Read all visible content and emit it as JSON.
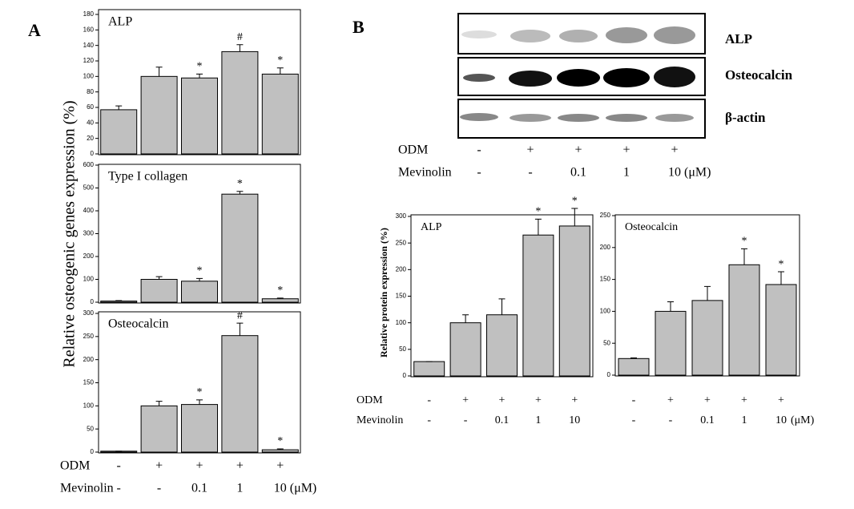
{
  "panel_a": {
    "label": "A",
    "ylabel": "Relative osteogenic genes expression (%)",
    "conditions": {
      "rows": [
        {
          "name": "ODM",
          "values": [
            "-",
            "+",
            "+",
            "+",
            "+"
          ]
        },
        {
          "name": "Mevinolin",
          "values": [
            "-",
            "-",
            "0.1",
            "1",
            "10"
          ],
          "unit": "(μM)"
        }
      ]
    }
  },
  "panel_b": {
    "label": "B",
    "ylabel": "Relative protein expression (%)",
    "blot_labels": [
      "ALP",
      "Osteocalcin",
      "β-actin"
    ],
    "blot_conditions": {
      "rows": [
        {
          "name": "ODM",
          "values": [
            "-",
            "+",
            "+",
            "+",
            "+"
          ]
        },
        {
          "name": "Mevinolin",
          "values": [
            "-",
            "-",
            "0.1",
            "1",
            "10"
          ],
          "unit": "(μM)"
        }
      ]
    },
    "left_conditions": {
      "rows": [
        {
          "name": "ODM",
          "values": [
            "-",
            "+",
            "+",
            "+",
            "+"
          ]
        },
        {
          "name": "Mevinolin",
          "values": [
            "-",
            "-",
            "0.1",
            "1",
            "10"
          ]
        }
      ]
    },
    "right_conditions": {
      "rows": [
        {
          "values": [
            "-",
            "+",
            "+",
            "+",
            "+"
          ]
        },
        {
          "values": [
            "-",
            "-",
            "0.1",
            "1",
            "10"
          ],
          "unit": "(μM)"
        }
      ]
    }
  },
  "chart_data": [
    {
      "type": "bar",
      "title": "ALP",
      "values": [
        57,
        100,
        98,
        132,
        103
      ],
      "errors": [
        5,
        12,
        5,
        9,
        8
      ],
      "annotations": [
        null,
        null,
        "*",
        "#",
        "*"
      ],
      "color": "#c0c0c0",
      "ylim": [
        0,
        180
      ],
      "yticks": [
        0,
        20,
        40,
        60,
        80,
        100,
        120,
        140,
        160,
        180
      ]
    },
    {
      "type": "bar",
      "title": "Type I collagen",
      "values": [
        5,
        100,
        92,
        473,
        15
      ],
      "errors": [
        2,
        12,
        12,
        12,
        3
      ],
      "annotations": [
        null,
        null,
        "*",
        "*",
        "*"
      ],
      "color": "#c0c0c0",
      "ylim": [
        0,
        600
      ],
      "yticks": [
        0,
        100,
        200,
        300,
        400,
        500,
        600
      ]
    },
    {
      "type": "bar",
      "title": "Osteocalcin",
      "values": [
        2,
        100,
        103,
        252,
        5
      ],
      "errors": [
        0,
        10,
        10,
        27,
        2
      ],
      "annotations": [
        null,
        null,
        "*",
        "#",
        "*"
      ],
      "color": "#c0c0c0",
      "ylim": [
        0,
        300
      ],
      "yticks": [
        0,
        50,
        100,
        150,
        200,
        250,
        300
      ]
    },
    {
      "type": "bar",
      "title": "ALP",
      "values": [
        27,
        100,
        115,
        265,
        282
      ],
      "errors": [
        0,
        15,
        30,
        30,
        33
      ],
      "annotations": [
        null,
        null,
        null,
        "*",
        "*"
      ],
      "color": "#c0c0c0",
      "ylim": [
        0,
        300
      ],
      "yticks": [
        0,
        50,
        100,
        150,
        200,
        250,
        300
      ]
    },
    {
      "type": "bar",
      "title": "Osteocalcin",
      "values": [
        26,
        100,
        117,
        173,
        142
      ],
      "errors": [
        1,
        15,
        22,
        25,
        20
      ],
      "annotations": [
        null,
        null,
        null,
        "*",
        "*"
      ],
      "color": "#c0c0c0",
      "ylim": [
        0,
        250
      ],
      "yticks": [
        0,
        50,
        100,
        150,
        200,
        250
      ]
    }
  ]
}
